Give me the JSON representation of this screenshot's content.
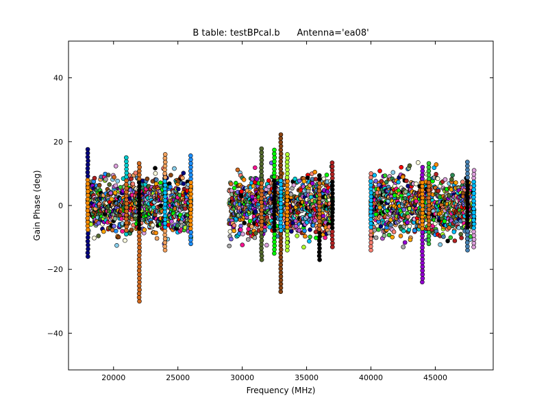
{
  "chart_data": {
    "type": "scatter",
    "title": "B table: testBPcal.b      Antenna='ea08'",
    "xlabel": "Frequency (MHz)",
    "ylabel": "Gain Phase (deg)",
    "xlim": [
      16500,
      49500
    ],
    "ylim": [
      -51.5,
      51.5
    ],
    "x_ticks": [
      20000,
      25000,
      30000,
      35000,
      40000,
      45000
    ],
    "x_tick_labels": [
      "20000",
      "25000",
      "30000",
      "35000",
      "40000",
      "45000"
    ],
    "y_ticks": [
      -40,
      -20,
      0,
      20,
      40
    ],
    "y_tick_labels": [
      "−40",
      "−20",
      "0",
      "20",
      "40"
    ],
    "grid": false,
    "legend": "none",
    "band_groups": [
      {
        "x_start": 18000,
        "x_end": 26000
      },
      {
        "x_start": 29000,
        "x_end": 37000
      },
      {
        "x_start": 40000,
        "x_end": 48000
      }
    ],
    "spread_deg": 6,
    "outliers": [
      {
        "x": 18000,
        "y_min": -16,
        "y_max": 18
      },
      {
        "x": 21000,
        "y_min": -9,
        "y_max": 16
      },
      {
        "x": 22000,
        "y_min": -30,
        "y_max": 14
      },
      {
        "x": 24000,
        "y_min": -14,
        "y_max": 16
      },
      {
        "x": 26000,
        "y_min": -12,
        "y_max": 16
      },
      {
        "x": 31500,
        "y_min": -17,
        "y_max": 18
      },
      {
        "x": 32500,
        "y_min": -15,
        "y_max": 18
      },
      {
        "x": 33000,
        "y_min": -27,
        "y_max": 23
      },
      {
        "x": 33500,
        "y_min": -14,
        "y_max": 17
      },
      {
        "x": 36000,
        "y_min": -17,
        "y_max": 10
      },
      {
        "x": 37000,
        "y_min": -13,
        "y_max": 14
      },
      {
        "x": 40000,
        "y_min": -14,
        "y_max": 11
      },
      {
        "x": 44000,
        "y_min": -24,
        "y_max": 12
      },
      {
        "x": 44500,
        "y_min": -12,
        "y_max": 14
      },
      {
        "x": 47500,
        "y_min": -14,
        "y_max": 14
      },
      {
        "x": 48000,
        "y_min": -13,
        "y_max": 12
      }
    ],
    "series_colors": [
      "#000080",
      "#ff0000",
      "#00ff00",
      "#ff8c00",
      "#9400d3",
      "#00ced1",
      "#ff1493",
      "#8b4513",
      "#87ceeb",
      "#32cd32",
      "#d2691e",
      "#a9a9a9",
      "#adff2f",
      "#ba55d3",
      "#4682b4",
      "#f4a460",
      "#2e8b57",
      "#000000",
      "#ffa500",
      "#dda0dd",
      "#1e90ff",
      "#8fbc8f",
      "#b22222",
      "#ffffe0",
      "#00bfff",
      "#556b2f",
      "#7b68ee",
      "#fa8072"
    ]
  }
}
